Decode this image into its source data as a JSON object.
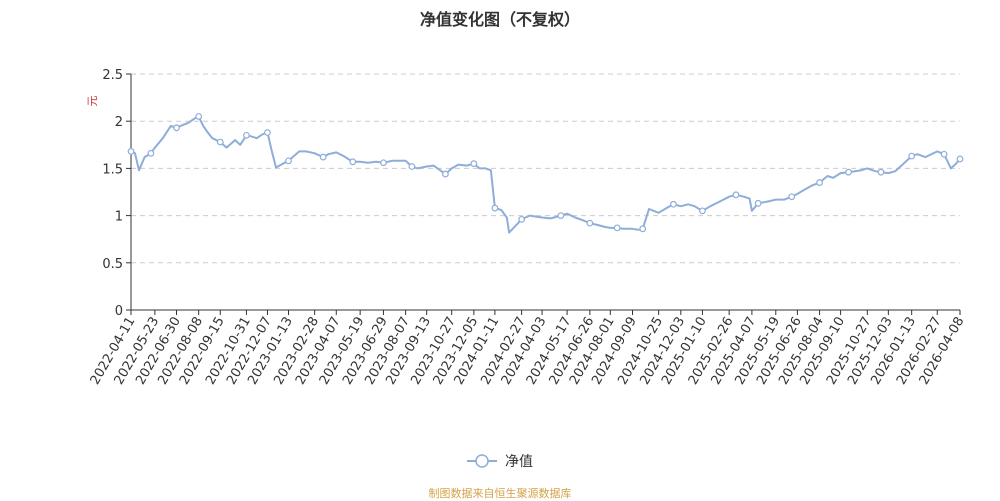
{
  "chart_data": {
    "type": "line",
    "title": "净值变化图（不复权）",
    "ylabel": "元",
    "ylim": [
      0,
      2.5
    ],
    "yticks": [
      "0",
      "0.5",
      "1",
      "1.5",
      "2",
      "2.5"
    ],
    "grid": true,
    "legend_position": "bottom",
    "xticks": [
      "2022-04-11",
      "2022-05-23",
      "2022-06-30",
      "2022-08-08",
      "2022-09-15",
      "2022-10-31",
      "2022-12-07",
      "2023-01-13",
      "2023-02-28",
      "2023-04-07",
      "2023-05-19",
      "2023-06-29",
      "2023-08-07",
      "2023-09-13",
      "2023-10-27",
      "2023-12-05",
      "2024-01-11",
      "2024-02-27",
      "2024-04-03",
      "2024-05-17",
      "2024-06-26",
      "2024-08-01",
      "2024-09-09",
      "2024-10-25",
      "2024-12-03",
      "2025-01-10",
      "2025-02-26",
      "2025-04-07",
      "2025-05-19",
      "2025-06-26",
      "2025-08-04",
      "2025-09-10",
      "2025-10-27",
      "2025-12-03",
      "2026-01-13",
      "2026-02-27",
      "2026-04-08"
    ],
    "series": [
      {
        "name": "净值",
        "color": "#8eadd9",
        "x": [
          "2022-04-11",
          "2022-04-18",
          "2022-04-25",
          "2022-05-05",
          "2022-05-16",
          "2022-05-23",
          "2022-06-06",
          "2022-06-20",
          "2022-06-30",
          "2022-07-11",
          "2022-07-20",
          "2022-08-01",
          "2022-08-08",
          "2022-08-16",
          "2022-08-24",
          "2022-09-01",
          "2022-09-15",
          "2022-09-26",
          "2022-10-11",
          "2022-10-20",
          "2022-10-31",
          "2022-11-08",
          "2022-11-18",
          "2022-11-28",
          "2022-12-07",
          "2022-12-14",
          "2022-12-22",
          "2023-01-03",
          "2023-01-13",
          "2023-02-01",
          "2023-02-13",
          "2023-02-28",
          "2023-03-15",
          "2023-03-24",
          "2023-04-07",
          "2023-04-20",
          "2023-05-06",
          "2023-05-19",
          "2023-06-02",
          "2023-06-16",
          "2023-06-29",
          "2023-07-14",
          "2023-07-24",
          "2023-08-07",
          "2023-08-18",
          "2023-08-28",
          "2023-09-13",
          "2023-09-25",
          "2023-10-16",
          "2023-10-27",
          "2023-11-08",
          "2023-11-22",
          "2023-12-05",
          "2023-12-15",
          "2023-12-26",
          "2024-01-04",
          "2024-01-11",
          "2024-01-22",
          "2024-02-01",
          "2024-02-05",
          "2024-02-27",
          "2024-03-12",
          "2024-04-03",
          "2024-04-18",
          "2024-05-06",
          "2024-05-17",
          "2024-05-31",
          "2024-06-14",
          "2024-06-26",
          "2024-07-10",
          "2024-07-22",
          "2024-08-01",
          "2024-08-13",
          "2024-08-23",
          "2024-09-09",
          "2024-09-20",
          "2024-09-27",
          "2024-10-08",
          "2024-10-25",
          "2024-11-08",
          "2024-11-20",
          "2024-12-03",
          "2024-12-16",
          "2024-12-27",
          "2025-01-10",
          "2025-01-24",
          "2025-02-10",
          "2025-02-26",
          "2025-03-10",
          "2025-03-24",
          "2025-04-03",
          "2025-04-07",
          "2025-04-18",
          "2025-05-06",
          "2025-05-19",
          "2025-06-03",
          "2025-06-16",
          "2025-06-26",
          "2025-07-10",
          "2025-07-22",
          "2025-08-04",
          "2025-08-18",
          "2025-08-28",
          "2025-09-10",
          "2025-09-24",
          "2025-10-16",
          "2025-10-27",
          "2025-11-10",
          "2025-11-20",
          "2025-12-03",
          "2025-12-15",
          "2025-12-26",
          "2026-01-13",
          "2026-01-23",
          "2026-02-06",
          "2026-02-27",
          "2026-03-11",
          "2026-03-23",
          "2026-04-01",
          "2026-04-08"
        ],
        "values": [
          1.68,
          1.66,
          1.48,
          1.62,
          1.66,
          1.72,
          1.82,
          1.95,
          1.93,
          1.96,
          1.98,
          2.03,
          2.05,
          1.95,
          1.88,
          1.82,
          1.78,
          1.72,
          1.8,
          1.75,
          1.85,
          1.84,
          1.82,
          1.86,
          1.88,
          1.7,
          1.51,
          1.55,
          1.58,
          1.68,
          1.68,
          1.66,
          1.62,
          1.65,
          1.67,
          1.63,
          1.57,
          1.57,
          1.56,
          1.57,
          1.56,
          1.58,
          1.58,
          1.58,
          1.52,
          1.5,
          1.52,
          1.53,
          1.44,
          1.5,
          1.54,
          1.53,
          1.55,
          1.5,
          1.5,
          1.48,
          1.08,
          1.06,
          0.98,
          0.82,
          0.96,
          1.0,
          0.98,
          0.97,
          1.0,
          1.02,
          0.98,
          0.95,
          0.92,
          0.9,
          0.88,
          0.87,
          0.87,
          0.86,
          0.86,
          0.85,
          0.86,
          1.07,
          1.03,
          1.08,
          1.12,
          1.1,
          1.12,
          1.1,
          1.05,
          1.1,
          1.15,
          1.2,
          1.22,
          1.2,
          1.18,
          1.05,
          1.13,
          1.15,
          1.17,
          1.17,
          1.2,
          1.23,
          1.28,
          1.32,
          1.35,
          1.42,
          1.4,
          1.45,
          1.46,
          1.48,
          1.5,
          1.47,
          1.46,
          1.45,
          1.47,
          1.53,
          1.63,
          1.65,
          1.62,
          1.68,
          1.65,
          1.5,
          1.55,
          1.6
        ]
      }
    ]
  },
  "legend": {
    "label": "净值",
    "color": "#8eadd9"
  },
  "source": "制图数据来自恒生聚源数据库"
}
